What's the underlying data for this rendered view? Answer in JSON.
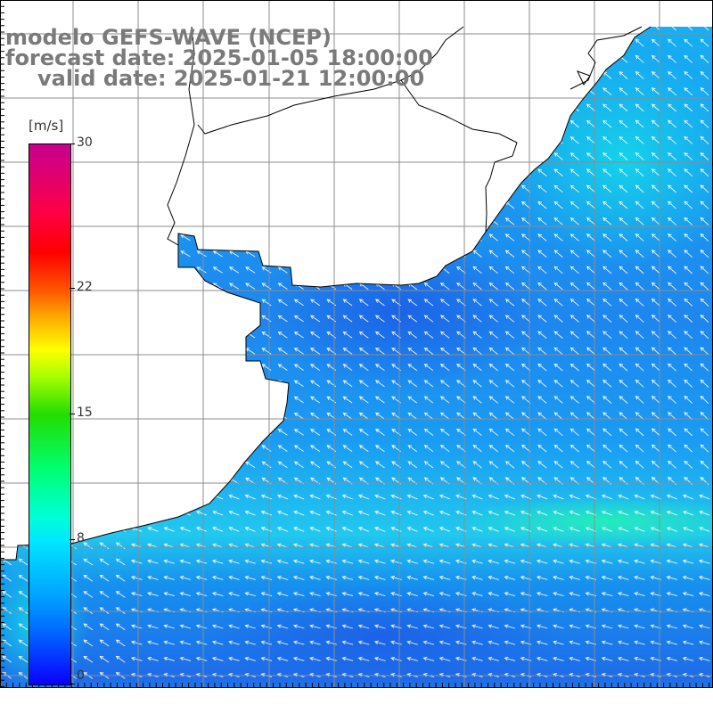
{
  "title": {
    "line1": "modelo GEFS-WAVE (NCEP)",
    "line2": "forecast date: 2025-01-05 18:00:00",
    "line3": "valid date: 2025-01-21 12:00:00"
  },
  "colorbar": {
    "unit": "[m/s]",
    "ticks": [
      {
        "label": "30",
        "value": 30
      },
      {
        "label": "22",
        "value": 22
      },
      {
        "label": "15",
        "value": 15
      },
      {
        "label": "8",
        "value": 8
      },
      {
        "label": "0",
        "value": 0
      }
    ],
    "range": [
      0,
      30
    ]
  },
  "colors": {
    "land": "#ffffff",
    "coastline": "#000000",
    "grid": "#8c8c8c",
    "ocean_low": "#1e6cf0",
    "ocean_mid": "#19b4f5",
    "ocean_high": "#14e6c8",
    "arrows": "#ffffff"
  },
  "map": {
    "field": "wind speed and direction",
    "wind_direction": "north-west",
    "grid": true
  }
}
